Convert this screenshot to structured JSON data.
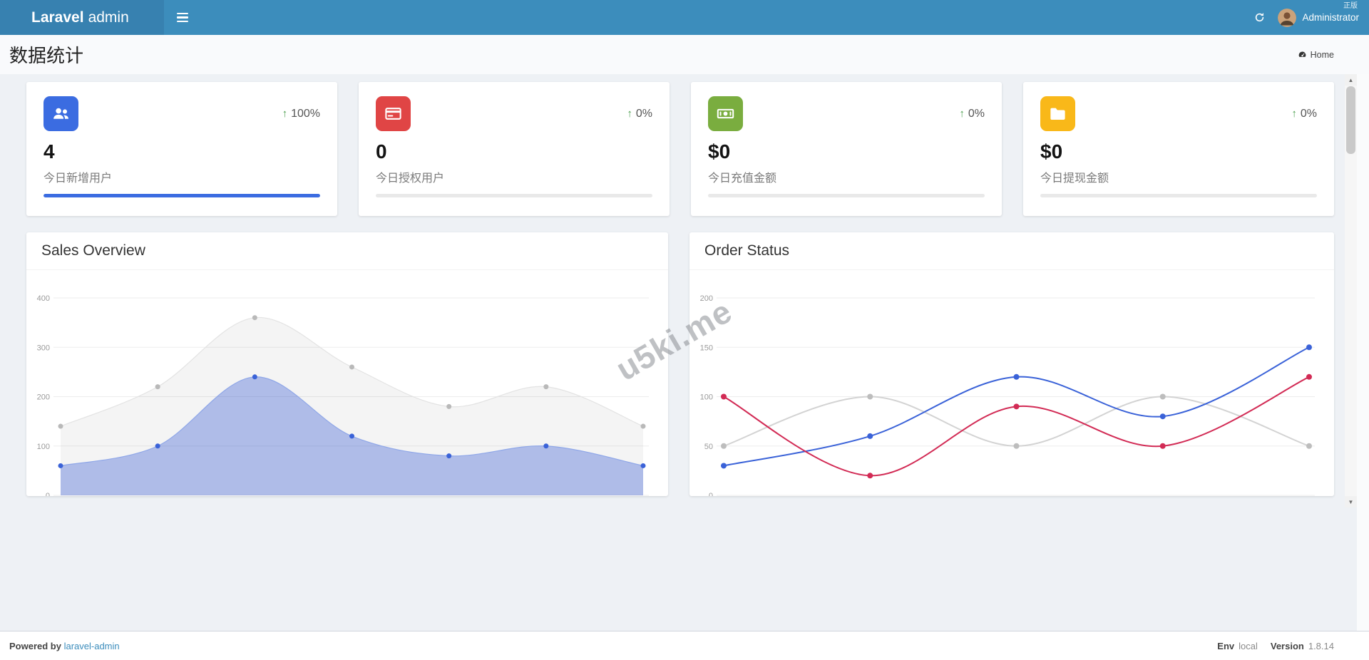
{
  "theme": {
    "navbar_bg": "#3c8dbc",
    "logo_bg": "#3781b0",
    "trend_up": "#4a9e4d",
    "link": "#3c8dbc",
    "content_bg": "#eef1f5",
    "header_bg": "#f9fafc"
  },
  "glyphs": {
    "arrow_up": "↑",
    "scroll_up": "▲",
    "scroll_down": "▼"
  },
  "navbar": {
    "brand_bold": "Laravel",
    "brand_regular": "admin",
    "username": "Administrator",
    "corner_text": "正版"
  },
  "page_header": {
    "title": "数据统计",
    "home_label": "Home"
  },
  "stat_cards": [
    {
      "icon": "users-icon",
      "icon_bg": "#3b6ce1",
      "percent": "100%",
      "value": "4",
      "label": "今日新增用户",
      "progress": 100,
      "progress_color": "#3b6ce1"
    },
    {
      "icon": "credit-card-icon",
      "icon_bg": "#e04545",
      "percent": "0%",
      "value": "0",
      "label": "今日授权用户",
      "progress": 0,
      "progress_color": "#e04545"
    },
    {
      "icon": "money-icon",
      "icon_bg": "#7aad3f",
      "percent": "0%",
      "value": "$0",
      "label": "今日充值金额",
      "progress": 0,
      "progress_color": "#7aad3f"
    },
    {
      "icon": "folder-icon",
      "icon_bg": "#f9b819",
      "percent": "0%",
      "value": "$0",
      "label": "今日提现金额",
      "progress": 0,
      "progress_color": "#f9b819"
    }
  ],
  "watermark": "u5ki.me",
  "chart_data": [
    {
      "type": "area",
      "title": "Sales Overview",
      "x_labels_visible": false,
      "ylim": [
        0,
        400
      ],
      "yticks": [
        0,
        100,
        200,
        300,
        400
      ],
      "grid": true,
      "legend": "none",
      "series": [
        {
          "name": "upper",
          "values": [
            140,
            220,
            360,
            260,
            180,
            220,
            140
          ],
          "line": "#e3e3e3",
          "fill": "rgba(0,0,0,0.045)",
          "dot": "#b9b9b9"
        },
        {
          "name": "lower",
          "values": [
            60,
            100,
            240,
            120,
            80,
            100,
            60
          ],
          "line": "#8fa7e8",
          "fill": "rgba(78,110,215,0.42)",
          "dot": "#3a62d8"
        }
      ]
    },
    {
      "type": "line",
      "title": "Order Status",
      "x_labels_visible": false,
      "ylim": [
        0,
        200
      ],
      "yticks": [
        0,
        50,
        100,
        150,
        200
      ],
      "grid": true,
      "legend": "none",
      "series": [
        {
          "name": "gray",
          "values": [
            50,
            100,
            50,
            100,
            50
          ],
          "line": "#d3d3d3",
          "dot": "#bdbdbd"
        },
        {
          "name": "blue",
          "values": [
            30,
            60,
            120,
            80,
            150
          ],
          "line": "#3a62d8",
          "dot": "#3a62d8"
        },
        {
          "name": "red",
          "values": [
            100,
            20,
            90,
            50,
            120
          ],
          "line": "#d22b55",
          "dot": "#d22b55"
        }
      ]
    }
  ],
  "footer": {
    "powered_by": "Powered by",
    "link_text": "laravel-admin",
    "env_label": "Env",
    "env_value": "local",
    "version_label": "Version",
    "version_value": "1.8.14"
  }
}
